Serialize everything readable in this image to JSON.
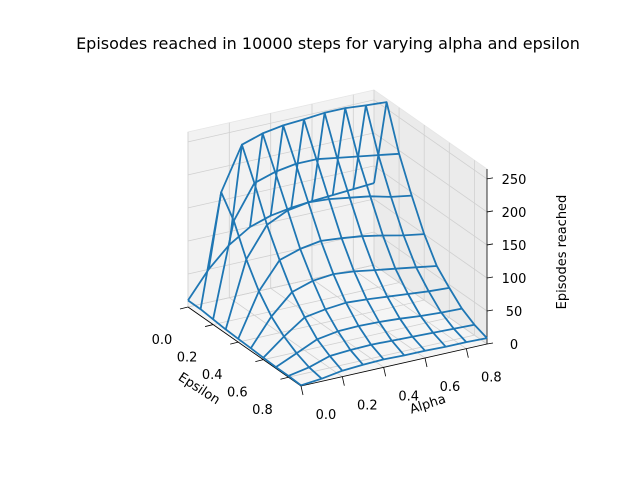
{
  "chart_data": {
    "type": "surface-wireframe-3d",
    "title": "Episodes reached in 10000 steps for varying alpha and epsilon",
    "xlabel": "Epsilon",
    "ylabel": "Alpha",
    "zlabel": "Episodes reached",
    "epsilon": [
      0.0,
      0.1,
      0.2,
      0.3,
      0.4,
      0.5,
      0.6,
      0.7,
      0.8,
      0.9
    ],
    "alpha": [
      0.0,
      0.1,
      0.2,
      0.3,
      0.4,
      0.5,
      0.6,
      0.7,
      0.8,
      0.9
    ],
    "xticks": [
      "0.0",
      "0.2",
      "0.4",
      "0.6",
      "0.8"
    ],
    "yticks": [
      "0.0",
      "0.2",
      "0.4",
      "0.6",
      "0.8"
    ],
    "zticks": [
      "0",
      "50",
      "100",
      "150",
      "200",
      "250"
    ],
    "xlim": [
      0,
      0.9
    ],
    "ylim": [
      0,
      0.9
    ],
    "zlim": [
      0,
      265
    ],
    "values": [
      [
        10,
        50,
        80,
        100,
        110,
        115,
        118,
        120,
        122,
        124
      ],
      [
        10,
        180,
        245,
        255,
        260,
        262,
        265,
        265,
        262,
        260
      ],
      [
        8,
        150,
        200,
        210,
        215,
        215,
        210,
        205,
        200,
        195
      ],
      [
        6,
        105,
        150,
        165,
        170,
        168,
        163,
        158,
        150,
        145
      ],
      [
        5,
        70,
        110,
        120,
        125,
        122,
        118,
        112,
        105,
        100
      ],
      [
        4,
        45,
        75,
        85,
        88,
        85,
        80,
        75,
        70,
        65
      ],
      [
        3,
        28,
        50,
        55,
        58,
        56,
        53,
        50,
        47,
        45
      ],
      [
        2,
        16,
        30,
        35,
        36,
        35,
        33,
        30,
        28,
        27
      ],
      [
        2,
        8,
        18,
        20,
        21,
        20,
        19,
        18,
        17,
        16
      ],
      [
        1,
        4,
        9,
        11,
        12,
        11,
        11,
        10,
        10,
        9
      ]
    ],
    "line_color": "#1f77b4",
    "grid": true
  }
}
